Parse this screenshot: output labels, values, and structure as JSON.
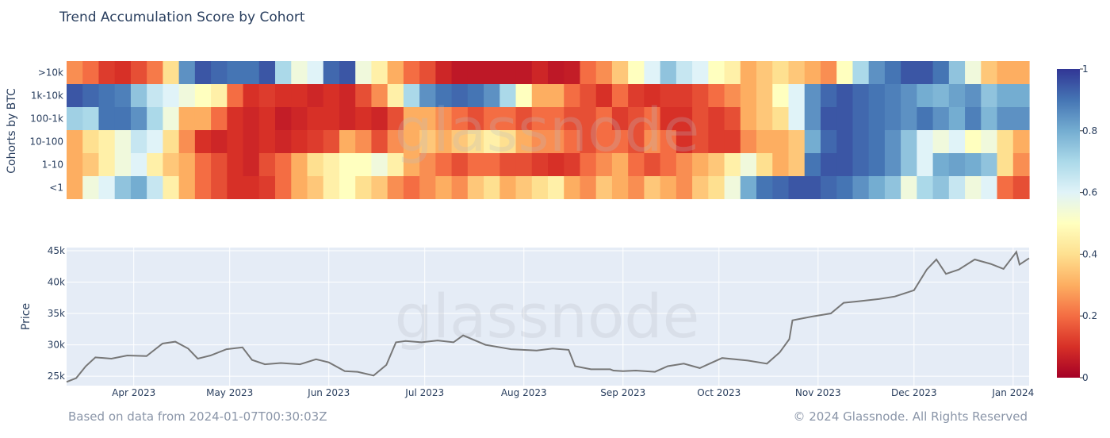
{
  "title": "Trend Accumulation Score by Cohort",
  "footer": {
    "left": "Based on data from 2024-01-07T00:30:03Z",
    "right": "© 2024 Glassnode. All Rights Reserved"
  },
  "watermark": "glassnode",
  "colors": {
    "scale": [
      "#a50026",
      "#d73027",
      "#f46d43",
      "#fdae61",
      "#fee090",
      "#ffffbf",
      "#e0f3f8",
      "#abd9e9",
      "#74add1",
      "#4575b4",
      "#313695"
    ],
    "price_line": "#777777",
    "plot_bg": "#e5ecf6"
  },
  "chart_data": [
    {
      "type": "heatmap",
      "ylabel": "Cohorts by BTC",
      "rows": [
        ">10k",
        "1k-10k",
        "100-1k",
        "10-100",
        "1-10",
        "<1"
      ],
      "x_range": [
        "2023-03-11",
        "2024-01-06"
      ],
      "colorbar": {
        "min": 0,
        "max": 1,
        "ticks": [
          0,
          0.2,
          0.4,
          0.6,
          0.8,
          1
        ]
      },
      "columns": 60,
      "values": [
        [
          0.25,
          0.2,
          0.12,
          0.1,
          0.15,
          0.22,
          0.4,
          0.85,
          0.95,
          0.92,
          0.9,
          0.9,
          0.95,
          0.7,
          0.55,
          0.6,
          0.92,
          0.95,
          0.55,
          0.45,
          0.3,
          0.2,
          0.15,
          0.08,
          0.05,
          0.05,
          0.05,
          0.05,
          0.05,
          0.08,
          0.05,
          0.06,
          0.2,
          0.25,
          0.35,
          0.5,
          0.6,
          0.75,
          0.65,
          0.6,
          0.5,
          0.45,
          0.3,
          0.35,
          0.4,
          0.35,
          0.3,
          0.25,
          0.5,
          0.7,
          0.85,
          0.9,
          0.95,
          0.95,
          0.9,
          0.75,
          0.55,
          0.35,
          0.3,
          0.3
        ],
        [
          0.95,
          0.92,
          0.9,
          0.88,
          0.75,
          0.65,
          0.6,
          0.55,
          0.5,
          0.45,
          0.2,
          0.1,
          0.12,
          0.1,
          0.1,
          0.08,
          0.1,
          0.08,
          0.15,
          0.25,
          0.45,
          0.7,
          0.85,
          0.9,
          0.92,
          0.9,
          0.85,
          0.7,
          0.5,
          0.3,
          0.3,
          0.2,
          0.15,
          0.1,
          0.2,
          0.12,
          0.1,
          0.12,
          0.12,
          0.15,
          0.2,
          0.25,
          0.3,
          0.35,
          0.5,
          0.6,
          0.85,
          0.92,
          0.95,
          0.92,
          0.9,
          0.88,
          0.85,
          0.8,
          0.78,
          0.82,
          0.85,
          0.75,
          0.8,
          0.8
        ],
        [
          0.72,
          0.7,
          0.9,
          0.9,
          0.85,
          0.7,
          0.55,
          0.3,
          0.3,
          0.2,
          0.1,
          0.08,
          0.1,
          0.06,
          0.08,
          0.1,
          0.1,
          0.08,
          0.1,
          0.08,
          0.15,
          0.3,
          0.3,
          0.25,
          0.2,
          0.15,
          0.2,
          0.2,
          0.15,
          0.2,
          0.2,
          0.15,
          0.15,
          0.2,
          0.12,
          0.15,
          0.2,
          0.1,
          0.1,
          0.15,
          0.12,
          0.15,
          0.3,
          0.35,
          0.4,
          0.6,
          0.85,
          0.95,
          0.95,
          0.92,
          0.9,
          0.88,
          0.85,
          0.9,
          0.85,
          0.8,
          0.88,
          0.78,
          0.85,
          0.85
        ],
        [
          0.3,
          0.4,
          0.45,
          0.55,
          0.65,
          0.6,
          0.4,
          0.25,
          0.1,
          0.08,
          0.1,
          0.08,
          0.1,
          0.08,
          0.1,
          0.12,
          0.15,
          0.3,
          0.25,
          0.15,
          0.25,
          0.3,
          0.35,
          0.3,
          0.35,
          0.4,
          0.45,
          0.4,
          0.3,
          0.25,
          0.25,
          0.2,
          0.15,
          0.2,
          0.2,
          0.15,
          0.25,
          0.2,
          0.1,
          0.15,
          0.12,
          0.12,
          0.25,
          0.3,
          0.3,
          0.35,
          0.8,
          0.92,
          0.95,
          0.92,
          0.9,
          0.85,
          0.75,
          0.6,
          0.55,
          0.6,
          0.5,
          0.55,
          0.4,
          0.3
        ],
        [
          0.3,
          0.35,
          0.45,
          0.55,
          0.6,
          0.45,
          0.35,
          0.3,
          0.2,
          0.15,
          0.1,
          0.08,
          0.15,
          0.2,
          0.3,
          0.4,
          0.45,
          0.5,
          0.5,
          0.55,
          0.45,
          0.3,
          0.25,
          0.2,
          0.15,
          0.2,
          0.2,
          0.15,
          0.15,
          0.12,
          0.1,
          0.12,
          0.2,
          0.25,
          0.3,
          0.2,
          0.15,
          0.2,
          0.25,
          0.3,
          0.35,
          0.45,
          0.55,
          0.4,
          0.3,
          0.35,
          0.9,
          0.95,
          0.95,
          0.92,
          0.9,
          0.85,
          0.75,
          0.6,
          0.8,
          0.82,
          0.8,
          0.75,
          0.4,
          0.25
        ],
        [
          0.3,
          0.55,
          0.6,
          0.75,
          0.8,
          0.65,
          0.45,
          0.3,
          0.2,
          0.15,
          0.1,
          0.1,
          0.12,
          0.2,
          0.3,
          0.35,
          0.45,
          0.5,
          0.4,
          0.35,
          0.25,
          0.2,
          0.25,
          0.3,
          0.25,
          0.35,
          0.4,
          0.3,
          0.35,
          0.4,
          0.45,
          0.3,
          0.25,
          0.35,
          0.3,
          0.25,
          0.35,
          0.3,
          0.25,
          0.35,
          0.4,
          0.55,
          0.8,
          0.9,
          0.92,
          0.95,
          0.95,
          0.92,
          0.9,
          0.85,
          0.8,
          0.75,
          0.55,
          0.7,
          0.75,
          0.65,
          0.55,
          0.6,
          0.2,
          0.15
        ]
      ]
    },
    {
      "type": "line",
      "ylabel": "Price",
      "x_range": [
        "2023-03-11",
        "2024-01-06"
      ],
      "ylim": [
        23500,
        45500
      ],
      "yticks": [
        "25k",
        "30k",
        "35k",
        "40k",
        "45k"
      ],
      "ytick_values": [
        25000,
        30000,
        35000,
        40000,
        45000
      ],
      "xticks": [
        "Apr 2023",
        "May 2023",
        "Jun 2023",
        "Jul 2023",
        "Aug 2023",
        "Sep 2023",
        "Oct 2023",
        "Nov 2023",
        "Dec 2023",
        "Jan 2024"
      ],
      "xtick_dates": [
        "2023-04-01",
        "2023-05-01",
        "2023-06-01",
        "2023-07-01",
        "2023-08-01",
        "2023-09-01",
        "2023-10-01",
        "2023-11-01",
        "2023-12-01",
        "2024-01-01"
      ],
      "x": [
        "2023-03-11",
        "2023-03-14",
        "2023-03-17",
        "2023-03-20",
        "2023-03-25",
        "2023-03-30",
        "2023-04-05",
        "2023-04-10",
        "2023-04-14",
        "2023-04-18",
        "2023-04-21",
        "2023-04-25",
        "2023-04-30",
        "2023-05-05",
        "2023-05-08",
        "2023-05-12",
        "2023-05-17",
        "2023-05-23",
        "2023-05-28",
        "2023-06-01",
        "2023-06-06",
        "2023-06-10",
        "2023-06-15",
        "2023-06-19",
        "2023-06-22",
        "2023-06-25",
        "2023-06-30",
        "2023-07-05",
        "2023-07-10",
        "2023-07-13",
        "2023-07-20",
        "2023-07-28",
        "2023-08-05",
        "2023-08-10",
        "2023-08-15",
        "2023-08-17",
        "2023-08-22",
        "2023-08-28",
        "2023-08-29",
        "2023-09-01",
        "2023-09-05",
        "2023-09-11",
        "2023-09-15",
        "2023-09-20",
        "2023-09-25",
        "2023-10-02",
        "2023-10-10",
        "2023-10-16",
        "2023-10-20",
        "2023-10-23",
        "2023-10-24",
        "2023-10-30",
        "2023-11-05",
        "2023-11-09",
        "2023-11-13",
        "2023-11-20",
        "2023-11-25",
        "2023-12-01",
        "2023-12-05",
        "2023-12-08",
        "2023-12-11",
        "2023-12-15",
        "2023-12-20",
        "2023-12-25",
        "2023-12-29",
        "2024-01-02",
        "2024-01-03",
        "2024-01-06"
      ],
      "values": [
        24100,
        24700,
        26600,
        28000,
        27800,
        28300,
        28200,
        30200,
        30500,
        29400,
        27800,
        28300,
        29300,
        29600,
        27600,
        26900,
        27100,
        26900,
        27700,
        27200,
        25800,
        25700,
        25100,
        26800,
        30400,
        30600,
        30400,
        30700,
        30400,
        31500,
        30000,
        29300,
        29100,
        29400,
        29200,
        26600,
        26100,
        26100,
        25900,
        25800,
        25900,
        25700,
        26600,
        27000,
        26300,
        27900,
        27500,
        27000,
        28800,
        30900,
        33900,
        34500,
        35000,
        36700,
        36900,
        37300,
        37700,
        38700,
        42000,
        43600,
        41300,
        42000,
        43600,
        42900,
        42100,
        44800,
        42800,
        43800
      ]
    }
  ]
}
